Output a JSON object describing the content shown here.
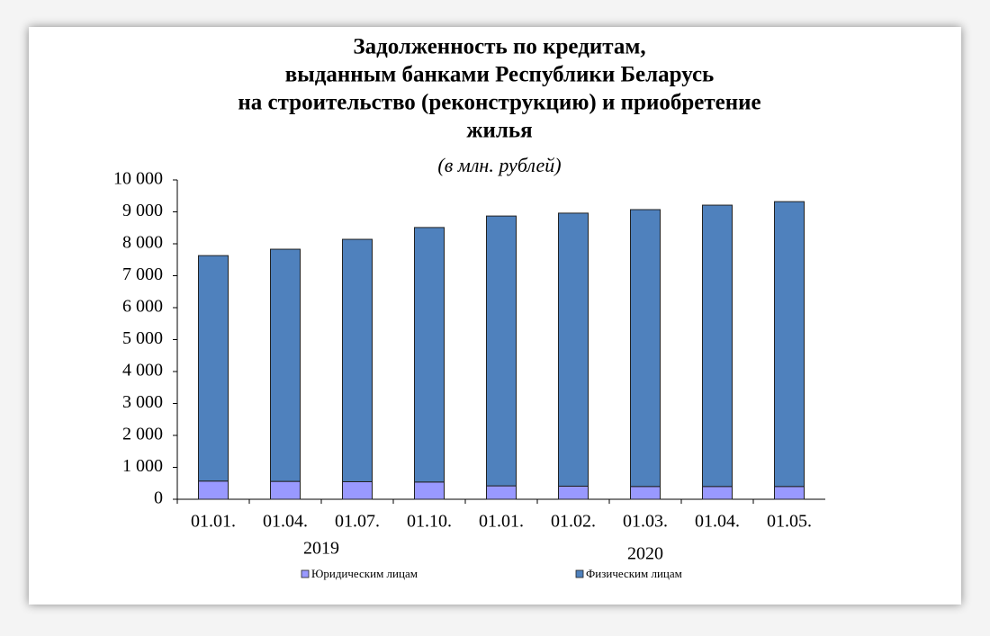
{
  "chart_data": {
    "type": "stacked_bar",
    "title": [
      "Задолженность по кредитам,",
      "выданным банками Республики Беларусь",
      "на строительство (реконструкцию) и приобретение",
      "жилья"
    ],
    "subtitle": "(в млн. рублей)",
    "categories": [
      "01.01.",
      "01.04.",
      "01.07.",
      "01.10.",
      "01.01.",
      "01.02.",
      "01.03.",
      "01.04.",
      "01.05."
    ],
    "category_groups": [
      {
        "label": "2019",
        "count": 4
      },
      {
        "label": "2020",
        "count": 5
      }
    ],
    "series": [
      {
        "name": "Юридическим лицам",
        "color": "#9999ff",
        "values": [
          570,
          560,
          550,
          540,
          420,
          410,
          400,
          400,
          400
        ]
      },
      {
        "name": "Физическим лицам",
        "color": "#4f81bd",
        "values": [
          7060,
          7270,
          7590,
          7970,
          8450,
          8550,
          8670,
          8810,
          8920
        ]
      }
    ],
    "ylim": [
      0,
      10000
    ],
    "yticks": [
      0,
      {
        "value": 1000,
        "label": "1 000"
      },
      {
        "value": 2000,
        "label": "2 000"
      },
      {
        "value": 3000,
        "label": "3 000"
      },
      {
        "value": 4000,
        "label": "4 000"
      },
      {
        "value": 5000,
        "label": "5 000"
      },
      {
        "value": 6000,
        "label": "6 000"
      },
      {
        "value": 7000,
        "label": "7 000"
      },
      {
        "value": 8000,
        "label": "8 000"
      },
      {
        "value": 9000,
        "label": "9 000"
      },
      {
        "value": 10000,
        "label": "10 000"
      }
    ],
    "grid": false
  }
}
